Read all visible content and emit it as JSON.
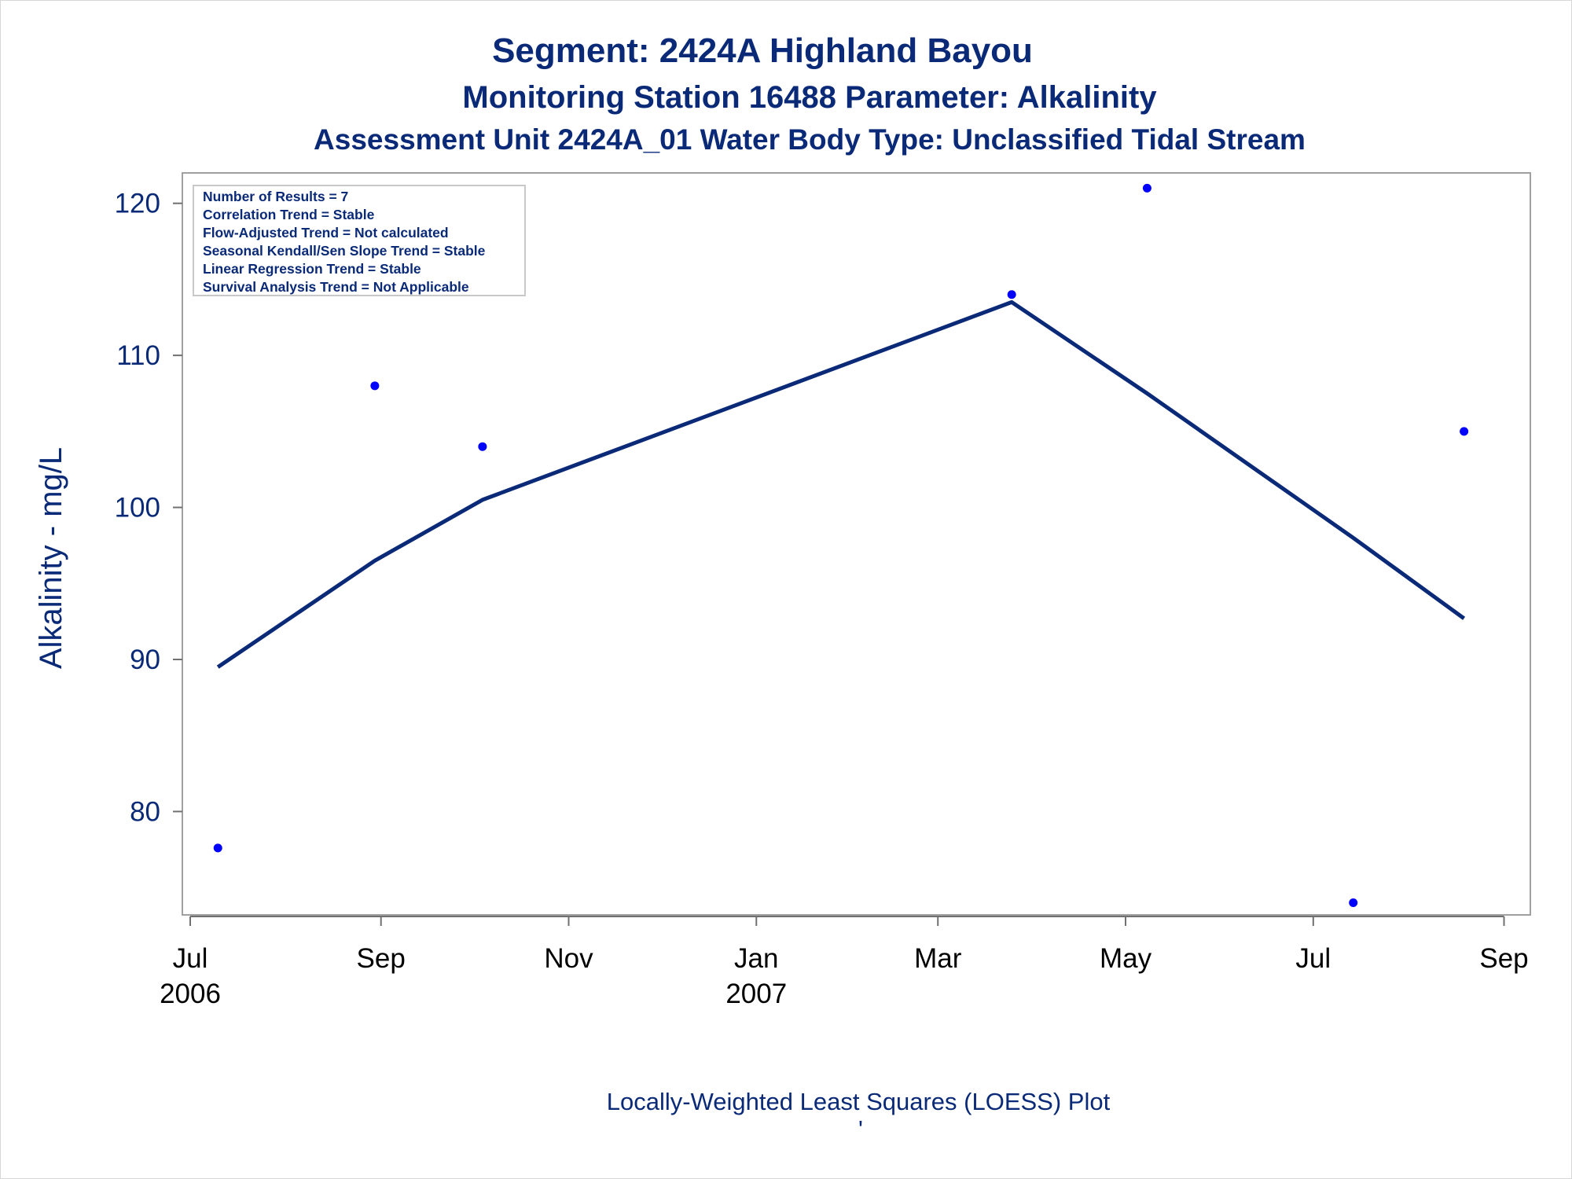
{
  "titles": {
    "line1": "Segment: 2424A  Highland Bayou",
    "line2": "Monitoring Station 16488 Parameter: Alkalinity",
    "line3": "Assessment Unit 2424A_01   Water Body Type: Unclassified Tidal Stream"
  },
  "stats_box": [
    "Number of Results = 7",
    "Correlation Trend = Stable",
    "Flow-Adjusted Trend = Not calculated",
    "Seasonal Kendall/Sen Slope Trend = Stable",
    "Linear Regression Trend = Stable",
    "Survival Analysis Trend = Not Applicable"
  ],
  "footnote": "Locally-Weighted Least Squares (LOESS) Plot",
  "footnote_mark": "'",
  "colors": {
    "text": "#0a2a78",
    "points": "#0000ff",
    "loess_line": "#0a2a78",
    "frame": "#a0a0a0"
  },
  "chart_data": {
    "type": "scatter",
    "ylabel": "Alkalinity - mg/L",
    "xlabel": "",
    "ylim": [
      73.2,
      122
    ],
    "xlim": [
      "2006-07-01",
      "2007-09-07"
    ],
    "y_ticks": [
      80,
      90,
      100,
      110,
      120
    ],
    "x_ticks": [
      {
        "date": "2006-07-01",
        "label": "Jul",
        "year": "2006"
      },
      {
        "date": "2006-09-01",
        "label": "Sep",
        "year": ""
      },
      {
        "date": "2006-11-01",
        "label": "Nov",
        "year": ""
      },
      {
        "date": "2007-01-01",
        "label": "Jan",
        "year": "2007"
      },
      {
        "date": "2007-03-01",
        "label": "Mar",
        "year": ""
      },
      {
        "date": "2007-05-01",
        "label": "May",
        "year": ""
      },
      {
        "date": "2007-07-01",
        "label": "Jul",
        "year": ""
      },
      {
        "date": "2007-09-01",
        "label": "Sep",
        "year": ""
      }
    ],
    "series": [
      {
        "kind": "points",
        "points": [
          {
            "x": "2006-07-10",
            "y": 77.6
          },
          {
            "x": "2006-08-30",
            "y": 108
          },
          {
            "x": "2006-10-04",
            "y": 104
          },
          {
            "x": "2007-03-25",
            "y": 114
          },
          {
            "x": "2007-05-08",
            "y": 121
          },
          {
            "x": "2007-07-14",
            "y": 74
          },
          {
            "x": "2007-08-19",
            "y": 105
          }
        ]
      },
      {
        "kind": "loess",
        "points": [
          {
            "x": "2006-07-10",
            "y": 89.5
          },
          {
            "x": "2006-08-30",
            "y": 96.5
          },
          {
            "x": "2006-10-04",
            "y": 100.5
          },
          {
            "x": "2007-03-25",
            "y": 113.5
          },
          {
            "x": "2007-05-08",
            "y": 107.5
          },
          {
            "x": "2007-07-14",
            "y": 98
          },
          {
            "x": "2007-08-19",
            "y": 92.7
          }
        ]
      }
    ]
  }
}
